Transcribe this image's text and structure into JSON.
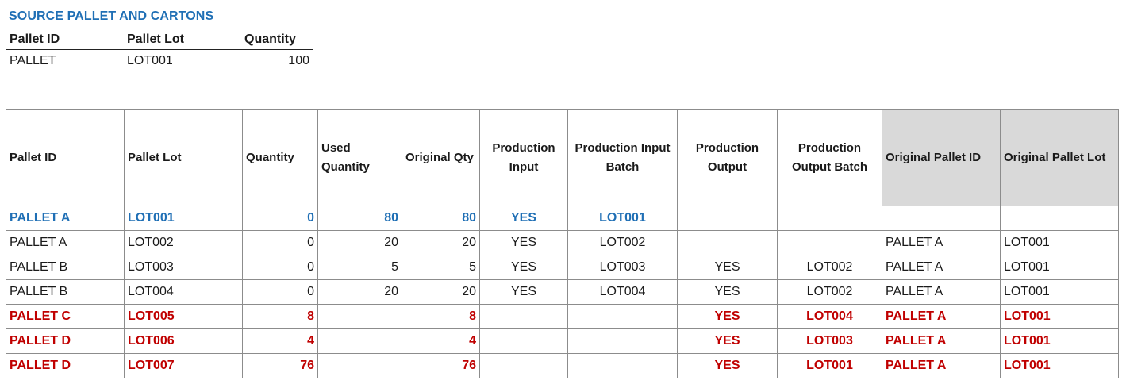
{
  "source": {
    "title": "SOURCE PALLET AND CARTONS",
    "headers": {
      "pallet_id": "Pallet ID",
      "pallet_lot": "Pallet Lot",
      "quantity": "Quantity"
    },
    "row": {
      "pallet_id": "PALLET",
      "pallet_lot": "LOT001",
      "quantity": "100"
    }
  },
  "table": {
    "headers": {
      "pallet_id": "Pallet ID",
      "pallet_lot": "Pallet Lot",
      "quantity": "Quantity",
      "used_quantity": "Used Quantity",
      "original_qty": "Original Qty",
      "production_input": "Production Input",
      "production_input_batch": "Production Input Batch",
      "production_output": "Production Output",
      "production_output_batch": "Production Output Batch",
      "original_pallet_id": "Original Pallet ID",
      "original_pallet_lot": "Original Pallet Lot"
    },
    "rows": [
      {
        "pallet_id": "PALLET A",
        "pallet_lot": "LOT001",
        "quantity": "0",
        "used_quantity": "80",
        "original_qty": "80",
        "production_input": "YES",
        "production_input_batch": "LOT001",
        "production_output": "",
        "production_output_batch": "",
        "original_pallet_id": "",
        "original_pallet_lot": ""
      },
      {
        "pallet_id": "PALLET A",
        "pallet_lot": "LOT002",
        "quantity": "0",
        "used_quantity": "20",
        "original_qty": "20",
        "production_input": "YES",
        "production_input_batch": "LOT002",
        "production_output": "",
        "production_output_batch": "",
        "original_pallet_id": "PALLET A",
        "original_pallet_lot": "LOT001"
      },
      {
        "pallet_id": "PALLET B",
        "pallet_lot": "LOT003",
        "quantity": "0",
        "used_quantity": "5",
        "original_qty": "5",
        "production_input": "YES",
        "production_input_batch": "LOT003",
        "production_output": "YES",
        "production_output_batch": "LOT002",
        "original_pallet_id": "PALLET A",
        "original_pallet_lot": "LOT001"
      },
      {
        "pallet_id": "PALLET B",
        "pallet_lot": "LOT004",
        "quantity": "0",
        "used_quantity": "20",
        "original_qty": "20",
        "production_input": "YES",
        "production_input_batch": "LOT004",
        "production_output": "YES",
        "production_output_batch": "LOT002",
        "original_pallet_id": "PALLET A",
        "original_pallet_lot": "LOT001"
      },
      {
        "pallet_id": "PALLET C",
        "pallet_lot": "LOT005",
        "quantity": "8",
        "used_quantity": "",
        "original_qty": "8",
        "production_input": "",
        "production_input_batch": "",
        "production_output": "YES",
        "production_output_batch": "LOT004",
        "original_pallet_id": "PALLET A",
        "original_pallet_lot": "LOT001"
      },
      {
        "pallet_id": "PALLET D",
        "pallet_lot": "LOT006",
        "quantity": "4",
        "used_quantity": "",
        "original_qty": "4",
        "production_input": "",
        "production_input_batch": "",
        "production_output": "YES",
        "production_output_batch": "LOT003",
        "original_pallet_id": "PALLET A",
        "original_pallet_lot": "LOT001"
      },
      {
        "pallet_id": "PALLET D",
        "pallet_lot": "LOT007",
        "quantity": "76",
        "used_quantity": "",
        "original_qty": "76",
        "production_input": "",
        "production_input_batch": "",
        "production_output": "YES",
        "production_output_batch": "LOT001",
        "original_pallet_id": "PALLET A",
        "original_pallet_lot": "LOT001"
      }
    ]
  },
  "colors": {
    "title_blue": "#1f6fb5",
    "highlight_blue": "#1f6fb5",
    "highlight_red": "#c00000",
    "header_shade": "#d9d9d9",
    "grid_line": "#8c8c8c"
  }
}
